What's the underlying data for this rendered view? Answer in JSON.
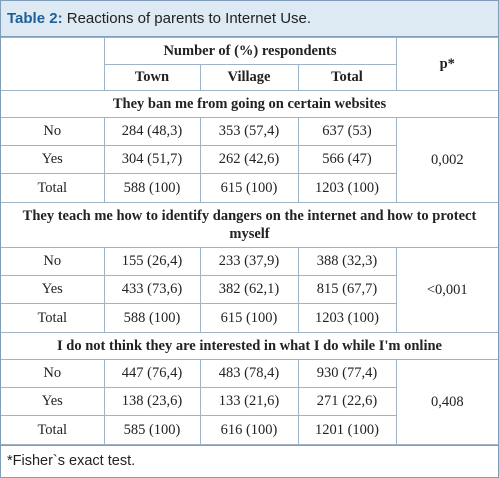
{
  "title": {
    "label": "Table 2:",
    "text": "Reactions of parents to Internet Use."
  },
  "header": {
    "group": "Number of (%) respondents",
    "columns": [
      "Town",
      "Village",
      "Total"
    ],
    "p": "p*"
  },
  "sections": [
    {
      "heading": "They ban me from going on certain websites",
      "p": "0,002",
      "rows": [
        [
          "No",
          "284 (48,3)",
          "353 (57,4)",
          "637 (53)"
        ],
        [
          "Yes",
          "304 (51,7)",
          "262 (42,6)",
          "566 (47)"
        ],
        [
          "Total",
          "588 (100)",
          "615 (100)",
          "1203 (100)"
        ]
      ]
    },
    {
      "heading": "They teach me how to identify dangers on the internet and how to protect myself",
      "p": "<0,001",
      "rows": [
        [
          "No",
          "155 (26,4)",
          "233 (37,9)",
          "388 (32,3)"
        ],
        [
          "Yes",
          "433 (73,6)",
          "382 (62,1)",
          "815 (67,7)"
        ],
        [
          "Total",
          "588 (100)",
          "615 (100)",
          "1203 (100)"
        ]
      ]
    },
    {
      "heading": "I do not think they are interested in what I do while I'm online",
      "p": "0,408",
      "rows": [
        [
          "No",
          "447 (76,4)",
          "483 (78,4)",
          "930 (77,4)"
        ],
        [
          "Yes",
          "138 (23,6)",
          "133 (21,6)",
          "271 (22,6)"
        ],
        [
          "Total",
          "585 (100)",
          "616 (100)",
          "1201 (100)"
        ]
      ]
    }
  ],
  "footnote": "*Fisher`s exact test."
}
